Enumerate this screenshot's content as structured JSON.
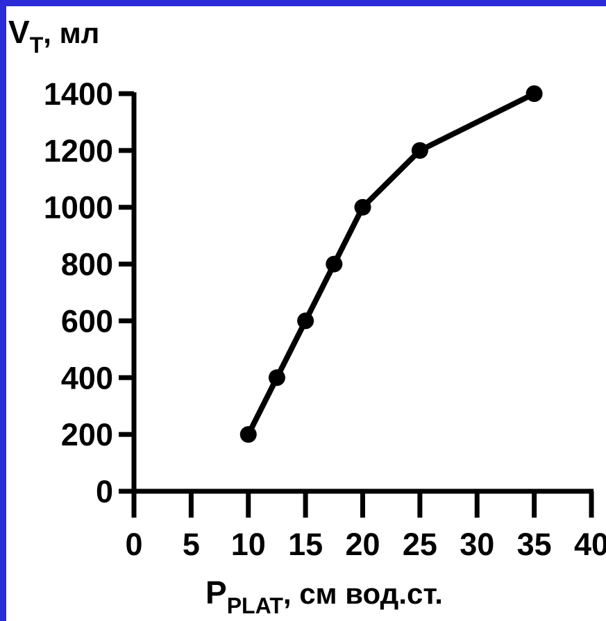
{
  "chart_data": {
    "type": "line",
    "ylabel": {
      "main": "V",
      "sub": "T",
      "rest": ", мл"
    },
    "xlabel": {
      "main": "P",
      "sub": "PLAT",
      "rest": ", см вод.ст."
    },
    "xlim": [
      0,
      40
    ],
    "ylim": [
      0,
      1400
    ],
    "x_ticks": [
      "0",
      "5",
      "10",
      "15",
      "20",
      "25",
      "30",
      "35",
      "40"
    ],
    "y_ticks": [
      "0",
      "200",
      "400",
      "600",
      "800",
      "1000",
      "1200",
      "1400"
    ],
    "series": [
      {
        "x": [
          10,
          12.5,
          15,
          17.5,
          20,
          25,
          35
        ],
        "y": [
          200,
          400,
          600,
          800,
          1000,
          1200,
          1400
        ]
      }
    ],
    "grid": false,
    "colors": {
      "frame": "#2b2bd8",
      "background": "#ffffff",
      "line": "#000000"
    }
  }
}
